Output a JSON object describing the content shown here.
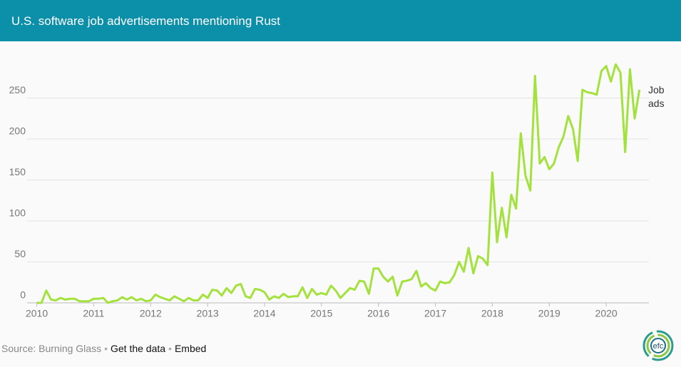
{
  "chart_data": {
    "type": "line",
    "title": "U.S. software job advertisements mentioning Rust",
    "x": [
      2010,
      2010.083,
      2010.167,
      2010.25,
      2010.333,
      2010.417,
      2010.5,
      2010.583,
      2010.667,
      2010.75,
      2010.833,
      2010.917,
      2011,
      2011.083,
      2011.167,
      2011.25,
      2011.333,
      2011.417,
      2011.5,
      2011.583,
      2011.667,
      2011.75,
      2011.833,
      2011.917,
      2012,
      2012.083,
      2012.167,
      2012.25,
      2012.333,
      2012.417,
      2012.5,
      2012.583,
      2012.667,
      2012.75,
      2012.833,
      2012.917,
      2013,
      2013.083,
      2013.167,
      2013.25,
      2013.333,
      2013.417,
      2013.5,
      2013.583,
      2013.667,
      2013.75,
      2013.833,
      2013.917,
      2014,
      2014.083,
      2014.167,
      2014.25,
      2014.333,
      2014.417,
      2014.5,
      2014.583,
      2014.667,
      2014.75,
      2014.833,
      2014.917,
      2015,
      2015.083,
      2015.167,
      2015.25,
      2015.333,
      2015.417,
      2015.5,
      2015.583,
      2015.667,
      2015.75,
      2015.833,
      2015.917,
      2016,
      2016.083,
      2016.167,
      2016.25,
      2016.333,
      2016.417,
      2016.5,
      2016.583,
      2016.667,
      2016.75,
      2016.833,
      2016.917,
      2017,
      2017.083,
      2017.167,
      2017.25,
      2017.333,
      2017.417,
      2017.5,
      2017.583,
      2017.667,
      2017.75,
      2017.833,
      2017.917,
      2018,
      2018.083,
      2018.167,
      2018.25,
      2018.333,
      2018.417,
      2018.5,
      2018.583,
      2018.667,
      2018.75,
      2018.833,
      2018.917,
      2019,
      2019.083,
      2019.167,
      2019.25,
      2019.333,
      2019.417,
      2019.5,
      2019.583,
      2019.667,
      2019.75,
      2019.833,
      2019.917,
      2020,
      2020.083,
      2020.167,
      2020.25,
      2020.333,
      2020.417,
      2020.5,
      2020.583
    ],
    "series": [
      {
        "name": "Job ads",
        "color": "#a3e13c",
        "values": [
          0,
          0,
          15,
          4,
          3,
          6,
          4,
          5,
          5,
          2,
          2,
          2,
          5,
          5,
          6,
          0,
          2,
          3,
          7,
          4,
          7,
          3,
          5,
          2,
          3,
          10,
          7,
          5,
          3,
          8,
          5,
          2,
          6,
          3,
          3,
          10,
          6,
          16,
          15,
          9,
          18,
          12,
          21,
          23,
          8,
          6,
          17,
          16,
          13,
          4,
          8,
          6,
          11,
          7,
          8,
          8,
          19,
          6,
          17,
          10,
          12,
          10,
          21,
          15,
          6,
          12,
          18,
          16,
          27,
          26,
          11,
          42,
          42,
          32,
          26,
          32,
          9,
          26,
          27,
          29,
          39,
          20,
          24,
          18,
          15,
          26,
          24,
          25,
          34,
          50,
          38,
          67,
          36,
          57,
          54,
          46,
          159,
          74,
          116,
          80,
          132,
          115,
          207,
          155,
          137,
          277,
          170,
          178,
          163,
          170,
          190,
          203,
          228,
          212,
          173,
          260,
          257,
          256,
          254,
          283,
          289,
          270,
          291,
          281,
          184,
          285,
          225,
          260
        ]
      }
    ],
    "xlim": [
      2009.83,
      2020.75
    ],
    "xticks": [
      2010,
      2011,
      2012,
      2013,
      2014,
      2015,
      2016,
      2017,
      2018,
      2019,
      2020
    ],
    "ylim": [
      0,
      300
    ],
    "yticks": [
      0,
      50,
      100,
      150,
      200,
      250
    ],
    "grid": true
  },
  "footer": {
    "source": "Source: Burning Glass",
    "links": [
      "Get the data",
      "Embed"
    ],
    "logo": "efc"
  }
}
